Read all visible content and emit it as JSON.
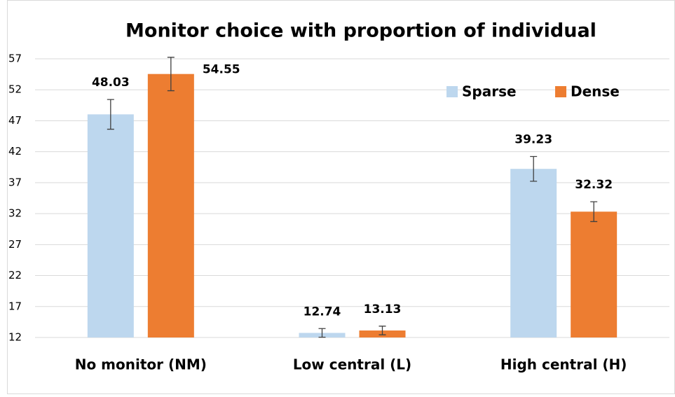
{
  "chart_data": {
    "type": "bar",
    "title": "Monitor choice with proportion of individual",
    "categories": [
      "No monitor (NM)",
      "Low central (L)",
      "High central (H)"
    ],
    "series": [
      {
        "name": "Sparse",
        "color": "#bdd7ee",
        "values": [
          48.03,
          12.74,
          39.23
        ],
        "errors": [
          2.4,
          0.7,
          2.0
        ]
      },
      {
        "name": "Dense",
        "color": "#ed7d31",
        "values": [
          54.55,
          13.13,
          32.32
        ],
        "errors": [
          2.7,
          0.7,
          1.6
        ]
      }
    ],
    "ylim": [
      12,
      57
    ],
    "yticks": [
      12,
      17,
      22,
      27,
      32,
      37,
      42,
      47,
      52,
      57
    ],
    "grid": true,
    "legend": "top-right"
  }
}
